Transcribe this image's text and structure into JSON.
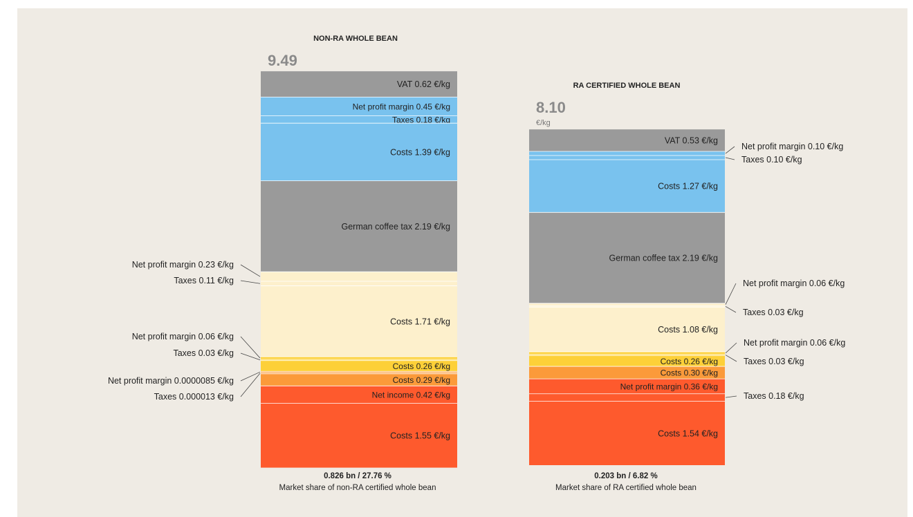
{
  "colors": {
    "gray": "#9a9a9a",
    "blue": "#79c2ee",
    "cream": "#fdf0cc",
    "yellow": "#fdd038",
    "orange": "#fb9a3a",
    "red": "#fe5a2d",
    "background": "#efebe4"
  },
  "chart_data": [
    {
      "type": "stacked-bar",
      "title": "NON-RA WHOLE BEAN",
      "total": "9.49",
      "total_unit": "€/kg",
      "footer_value": "0.826 bn / 27.76 %",
      "footer_text": "Market share of non-RA certified whole bean",
      "segments": [
        {
          "label": "VAT 0.62 €/kg",
          "value": 0.62,
          "color": "gray"
        },
        {
          "label": "Net profit margin 0.45 €/kg",
          "value": 0.45,
          "color": "blue"
        },
        {
          "label": "Taxes 0.18 €/kg",
          "value": 0.18,
          "color": "blue"
        },
        {
          "label": "Costs 1.39 €/kg",
          "value": 1.39,
          "color": "blue"
        },
        {
          "label": "German coffee tax 2.19 €/kg",
          "value": 2.19,
          "color": "gray"
        },
        {
          "label": "Net profit margin 0.23 €/kg",
          "value": 0.23,
          "color": "cream"
        },
        {
          "label": "Taxes 0.11 €/kg",
          "value": 0.11,
          "color": "cream"
        },
        {
          "label": "Costs 1.71 €/kg",
          "value": 1.71,
          "color": "cream"
        },
        {
          "label": "Net profit margin 0.06 €/kg",
          "value": 0.06,
          "color": "yellow"
        },
        {
          "label": "Taxes 0.03 €/kg",
          "value": 0.03,
          "color": "yellow"
        },
        {
          "label": "Costs 0.26 €/kg",
          "value": 0.26,
          "color": "yellow"
        },
        {
          "label": "Net profit margin 0.0000085 €/kg",
          "value": 8.5e-06,
          "color": "orange"
        },
        {
          "label": "Taxes 0.000013 €/kg",
          "value": 1.3e-05,
          "color": "orange"
        },
        {
          "label": "Costs 0.29 €/kg",
          "value": 0.29,
          "color": "orange"
        },
        {
          "label": "Net income 0.42 €/kg",
          "value": 0.42,
          "color": "red"
        },
        {
          "label": "Costs 1.55 €/kg",
          "value": 1.55,
          "color": "red"
        }
      ]
    },
    {
      "type": "stacked-bar",
      "title": "RA CERTIFIED WHOLE BEAN",
      "total": "8.10",
      "total_unit": "€/kg",
      "footer_value": "0.203 bn / 6.82 %",
      "footer_text": "Market share of RA certified whole bean",
      "segments": [
        {
          "label": "VAT 0.53 €/kg",
          "value": 0.53,
          "color": "gray"
        },
        {
          "label": "Net profit margin 0.10 €/kg",
          "value": 0.1,
          "color": "blue"
        },
        {
          "label": "Taxes 0.10 €/kg",
          "value": 0.1,
          "color": "blue"
        },
        {
          "label": "Costs 1.27 €/kg",
          "value": 1.27,
          "color": "blue"
        },
        {
          "label": "German coffee tax 2.19 €/kg",
          "value": 2.19,
          "color": "gray"
        },
        {
          "label": "Net profit margin 0.06 €/kg",
          "value": 0.06,
          "color": "cream"
        },
        {
          "label": "Taxes 0.03 €/kg",
          "value": 0.03,
          "color": "cream"
        },
        {
          "label": "Costs 1.08 €/kg",
          "value": 1.08,
          "color": "cream"
        },
        {
          "label": "Net profit margin 0.06 €/kg",
          "value": 0.06,
          "color": "yellow"
        },
        {
          "label": "Taxes 0.03 €/kg",
          "value": 0.03,
          "color": "yellow"
        },
        {
          "label": "Costs 0.26 €/kg",
          "value": 0.26,
          "color": "yellow"
        },
        {
          "label": "Costs 0.30 €/kg",
          "value": 0.3,
          "color": "orange"
        },
        {
          "label": "Net profit margin 0.36 €/kg",
          "value": 0.36,
          "color": "red"
        },
        {
          "label": "Taxes 0.18 €/kg",
          "value": 0.18,
          "color": "red"
        },
        {
          "label": "Costs 1.54 €/kg",
          "value": 1.54,
          "color": "red"
        }
      ]
    }
  ]
}
